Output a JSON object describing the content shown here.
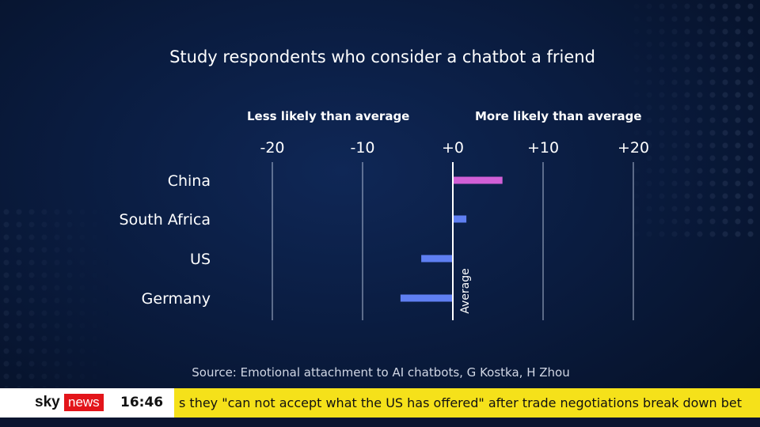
{
  "chart_data": {
    "type": "bar",
    "orientation": "horizontal",
    "title": "Study respondents who consider a chatbot a friend",
    "annotations": {
      "left": "Less likely than average",
      "right": "More likely than average",
      "baseline": "Average"
    },
    "tick_labels": [
      "-20",
      "-10",
      "+0",
      "+10",
      "+20"
    ],
    "ticks": [
      -20,
      -10,
      0,
      10,
      20
    ],
    "xlim": [
      -20,
      20
    ],
    "grid": true,
    "categories": [
      "China",
      "South Africa",
      "US",
      "Germany"
    ],
    "values": [
      5.5,
      1.5,
      -3.5,
      -5.8
    ],
    "bar_colors": [
      "#d15fd6",
      "#5f7ff2",
      "#5f7ff2",
      "#5f7ff2"
    ],
    "source": "Source: Emotional attachment to AI chatbots, G Kostka, H Zhou"
  },
  "ticker": {
    "logo_sky": "sky",
    "logo_news": "news",
    "time": "16:46",
    "headline": "s they \"can not accept what the US has offered\" after trade negotiations break down bet"
  },
  "colors": {
    "background": "#0a1c40",
    "ticker_yellow": "#f5e11a",
    "news_red": "#e3151a"
  }
}
